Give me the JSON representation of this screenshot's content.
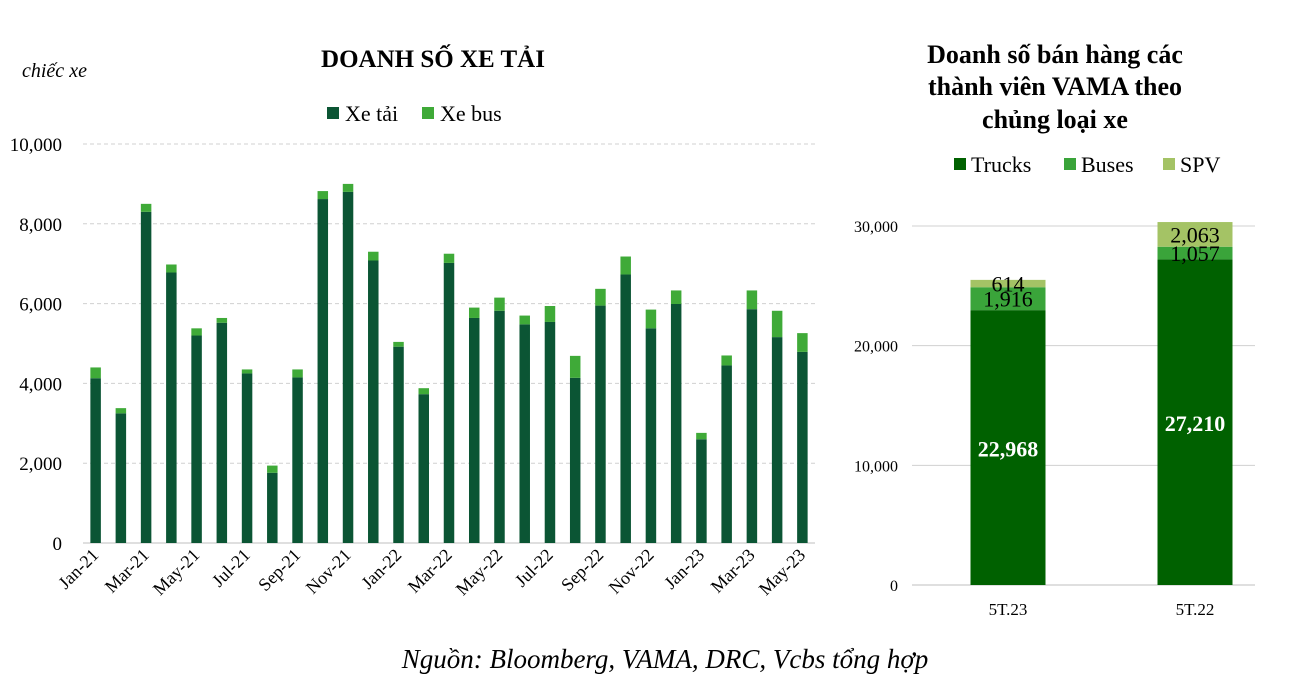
{
  "source": "Nguồn: Bloomberg, VAMA, DRC, Vcbs tổng hợp",
  "colors": {
    "dark": "#0b5534",
    "green": "#3faa38",
    "truck": "#006100",
    "bus": "#3aa43a",
    "spv": "#a4c365",
    "grid": "#d0d0d0"
  },
  "chart_data": [
    {
      "type": "bar",
      "stacked": true,
      "title": "DOANH SỐ XE TẢI",
      "ylabel": "chiếc xe",
      "xlabel": "",
      "ylim": [
        0,
        10000
      ],
      "yticks": [
        0,
        2000,
        4000,
        6000,
        8000,
        10000
      ],
      "ytick_labels": [
        "0",
        "2,000",
        "4,000",
        "6,000",
        "8,000",
        "10,000"
      ],
      "grid": true,
      "legend": "top-center",
      "categories": [
        "Jan-21",
        "Feb-21",
        "Mar-21",
        "Apr-21",
        "May-21",
        "Jun-21",
        "Jul-21",
        "Aug-21",
        "Sep-21",
        "Oct-21",
        "Nov-21",
        "Dec-21",
        "Jan-22",
        "Feb-22",
        "Mar-22",
        "Apr-22",
        "May-22",
        "Jun-22",
        "Jul-22",
        "Aug-22",
        "Sep-22",
        "Oct-22",
        "Nov-22",
        "Dec-22",
        "Jan-23",
        "Feb-23",
        "Mar-23",
        "Apr-23",
        "May-23"
      ],
      "xtick_labels": [
        "Jan-21",
        "",
        "Mar-21",
        "",
        "May-21",
        "",
        "Jul-21",
        "",
        "Sep-21",
        "",
        "Nov-21",
        "",
        "Jan-22",
        "",
        "Mar-22",
        "",
        "May-22",
        "",
        "Jul-22",
        "",
        "Sep-22",
        "",
        "Nov-22",
        "",
        "Jan-23",
        "",
        "Mar-23",
        "",
        "May-23"
      ],
      "series": [
        {
          "name": "Xe tải",
          "values": [
            4130,
            3250,
            8300,
            6780,
            5200,
            5520,
            4250,
            1760,
            4150,
            8620,
            8800,
            7080,
            4920,
            3730,
            7020,
            5640,
            5820,
            5480,
            5540,
            4140,
            5950,
            6730,
            5380,
            5990,
            2600,
            4450,
            5860,
            5160,
            4790
          ]
        },
        {
          "name": "Xe bus",
          "values": [
            270,
            130,
            200,
            200,
            180,
            120,
            100,
            180,
            200,
            200,
            200,
            220,
            120,
            150,
            230,
            260,
            330,
            220,
            400,
            550,
            420,
            450,
            470,
            340,
            160,
            250,
            470,
            660,
            470
          ]
        }
      ]
    },
    {
      "type": "bar",
      "stacked": true,
      "title": "Doanh số bán hàng các thành viên VAMA theo chủng loại xe",
      "title_lines": [
        "Doanh số bán hàng các",
        "thành viên VAMA theo",
        "chủng loại xe"
      ],
      "xlabel": "",
      "ylabel": "",
      "ylim": [
        0,
        30000
      ],
      "yticks": [
        0,
        10000,
        20000,
        30000
      ],
      "ytick_labels": [
        "0",
        "10,000",
        "20,000",
        "30,000"
      ],
      "grid": true,
      "legend": "top-center",
      "categories": [
        "5T.23",
        "5T.22"
      ],
      "series": [
        {
          "name": "Trucks",
          "values": [
            22968,
            27210
          ],
          "labels": [
            "22,968",
            "27,210"
          ]
        },
        {
          "name": "Buses",
          "values": [
            1916,
            1057
          ],
          "labels": [
            "1,916",
            "1,057"
          ]
        },
        {
          "name": "SPV",
          "values": [
            614,
            2063
          ],
          "labels": [
            "614",
            "2,063"
          ]
        }
      ]
    }
  ]
}
